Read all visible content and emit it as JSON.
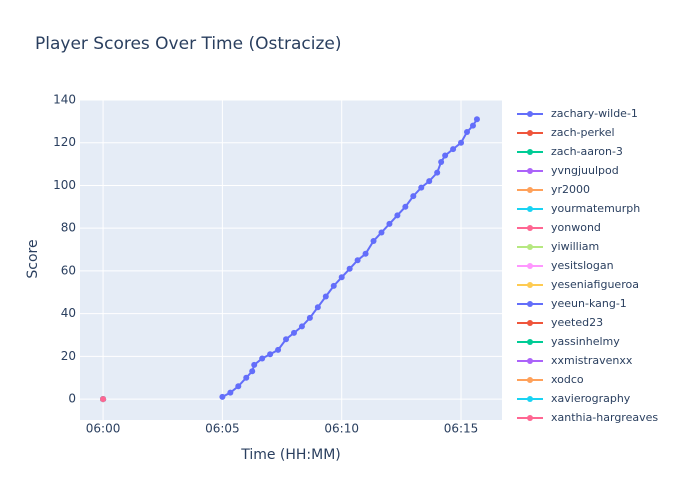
{
  "chart_data": {
    "type": "line",
    "title": "Player Scores Over Time (Ostracize)",
    "xlabel": "Time (HH:MM)",
    "ylabel": "Score",
    "xlim": [
      "05:59:02",
      "06:16:43"
    ],
    "xticks": [
      {
        "value": "06:00:00",
        "label": "06:00"
      },
      {
        "value": "06:05:00",
        "label": "06:05"
      },
      {
        "value": "06:10:00",
        "label": "06:10"
      },
      {
        "value": "06:15:00",
        "label": "06:15"
      }
    ],
    "ylim": [
      -9.8,
      140
    ],
    "yticks": [
      0,
      20,
      40,
      60,
      80,
      100,
      120,
      140
    ],
    "grid": true,
    "legend": "right",
    "series": [
      {
        "name": "zachary-wilde-1",
        "color": "#636efa",
        "x": [
          "06:05:00",
          "06:05:20",
          "06:05:40",
          "06:06:00",
          "06:06:15",
          "06:06:20",
          "06:06:40",
          "06:07:00",
          "06:07:20",
          "06:07:40",
          "06:08:00",
          "06:08:20",
          "06:08:40",
          "06:09:00",
          "06:09:20",
          "06:09:40",
          "06:10:00",
          "06:10:20",
          "06:10:40",
          "06:11:00",
          "06:11:20",
          "06:11:40",
          "06:12:00",
          "06:12:20",
          "06:12:40",
          "06:13:00",
          "06:13:20",
          "06:13:40",
          "06:14:00",
          "06:14:10",
          "06:14:20",
          "06:14:40",
          "06:15:00",
          "06:15:15",
          "06:15:30",
          "06:15:40"
        ],
        "values": [
          1,
          3,
          6,
          10,
          13,
          16,
          19,
          21,
          23,
          28,
          31,
          34,
          38,
          43,
          48,
          53,
          57,
          61,
          65,
          68,
          74,
          78,
          82,
          86,
          90,
          95,
          99,
          102,
          106,
          111,
          114,
          117,
          120,
          125,
          128,
          131
        ]
      },
      {
        "name": "zach-perkel",
        "color": "#EF553B",
        "x": [
          "06:00:00"
        ],
        "values": [
          0
        ]
      },
      {
        "name": "zach-aaron-3",
        "color": "#00cc96",
        "x": [
          "06:00:00"
        ],
        "values": [
          0
        ]
      },
      {
        "name": "yvngjuulpod",
        "color": "#ab63fa",
        "x": [
          "06:00:00"
        ],
        "values": [
          0
        ]
      },
      {
        "name": "yr2000",
        "color": "#FFA15A",
        "x": [
          "06:00:00"
        ],
        "values": [
          0
        ]
      },
      {
        "name": "yourmatemurph",
        "color": "#19d3f3",
        "x": [
          "06:00:00"
        ],
        "values": [
          0
        ]
      },
      {
        "name": "yonwond",
        "color": "#FF6692",
        "x": [
          "06:00:00"
        ],
        "values": [
          0
        ]
      },
      {
        "name": "yiwilliam",
        "color": "#B6E880",
        "x": [
          "06:00:00"
        ],
        "values": [
          0
        ]
      },
      {
        "name": "yesitslogan",
        "color": "#FF97FF",
        "x": [
          "06:00:00"
        ],
        "values": [
          0
        ]
      },
      {
        "name": "yeseniafigueroa",
        "color": "#FECB52",
        "x": [
          "06:00:00"
        ],
        "values": [
          0
        ]
      },
      {
        "name": "yeeun-kang-1",
        "color": "#636efa",
        "x": [
          "06:00:00"
        ],
        "values": [
          0
        ]
      },
      {
        "name": "yeeted23",
        "color": "#EF553B",
        "x": [
          "06:00:00"
        ],
        "values": [
          0
        ]
      },
      {
        "name": "yassinhelmy",
        "color": "#00cc96",
        "x": [
          "06:00:00"
        ],
        "values": [
          0
        ]
      },
      {
        "name": "xxmistravenxx",
        "color": "#ab63fa",
        "x": [
          "06:00:00"
        ],
        "values": [
          0
        ]
      },
      {
        "name": "xodco",
        "color": "#FFA15A",
        "x": [
          "06:00:00"
        ],
        "values": [
          0
        ]
      },
      {
        "name": "xavierography",
        "color": "#19d3f3",
        "x": [
          "06:00:00"
        ],
        "values": [
          0
        ]
      },
      {
        "name": "xanthia-hargreaves",
        "color": "#FF6692",
        "x": [
          "06:00:00"
        ],
        "values": [
          0
        ]
      }
    ]
  }
}
